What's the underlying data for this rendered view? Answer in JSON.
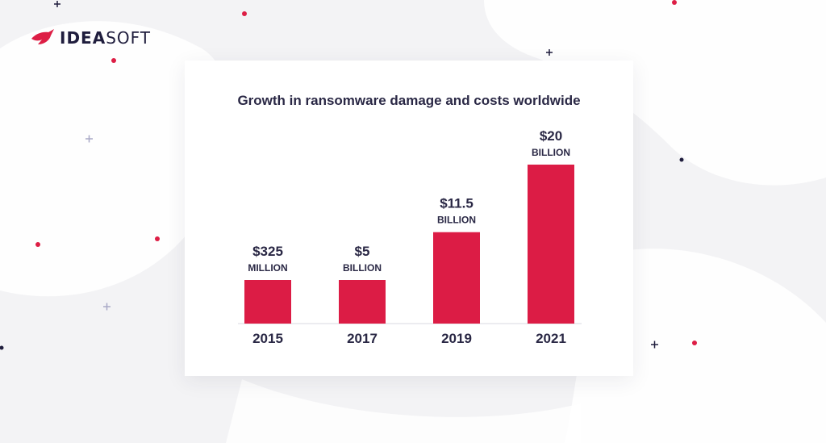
{
  "brand": {
    "name_bold": "IDEA",
    "name_regular": "SOFT",
    "mark_icon": "red-bird-icon",
    "accent": "#dd1e45",
    "dark": "#1f1d3d"
  },
  "chart_data": {
    "type": "bar",
    "title": "Growth in ransomware damage and costs worldwide",
    "categories": [
      "2015",
      "2017",
      "2019",
      "2021"
    ],
    "values": [
      0.325,
      5,
      11.5,
      20
    ],
    "unit": "billion USD",
    "data_labels": [
      {
        "amount": "$325",
        "unit": "MILLION"
      },
      {
        "amount": "$5",
        "unit": "BILLION"
      },
      {
        "amount": "$11.5",
        "unit": "BILLION"
      },
      {
        "amount": "$20",
        "unit": "BILLION"
      }
    ],
    "bar_color": "#dc1c45",
    "grid": false,
    "legend": "none"
  }
}
